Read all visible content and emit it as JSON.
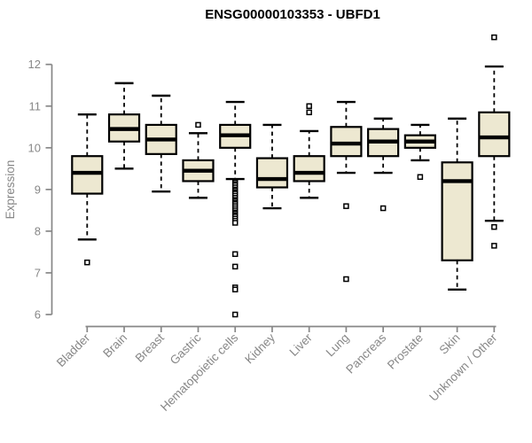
{
  "colors": {
    "box_fill": "#EDE8D1",
    "box_stroke": "#000000",
    "axis": "#878787",
    "text": "#878787",
    "title": "#000000"
  },
  "chart_data": {
    "type": "boxplot",
    "title": "ENSG00000103353 - UBFD1",
    "ylabel": "Expression",
    "xlabel": "",
    "ylim": [
      6,
      12.7
    ],
    "yticks": [
      6,
      7,
      8,
      9,
      10,
      11,
      12
    ],
    "grid": false,
    "legend": false,
    "categories": [
      "Bladder",
      "Brain",
      "Breast",
      "Gastric",
      "Hematopoietic cells",
      "Kidney",
      "Liver",
      "Lung",
      "Pancreas",
      "Prostate",
      "Skin",
      "Unknown / Other"
    ],
    "series": [
      {
        "name": "Bladder",
        "whisker_low": 7.8,
        "q1": 8.9,
        "median": 9.4,
        "q3": 9.8,
        "whisker_high": 10.8,
        "outliers": [
          7.25
        ]
      },
      {
        "name": "Brain",
        "whisker_low": 9.5,
        "q1": 10.15,
        "median": 10.45,
        "q3": 10.8,
        "whisker_high": 11.55,
        "outliers": []
      },
      {
        "name": "Breast",
        "whisker_low": 8.95,
        "q1": 9.85,
        "median": 10.2,
        "q3": 10.55,
        "whisker_high": 11.25,
        "outliers": []
      },
      {
        "name": "Gastric",
        "whisker_low": 8.8,
        "q1": 9.2,
        "median": 9.45,
        "q3": 9.7,
        "whisker_high": 10.35,
        "outliers": [
          10.55
        ]
      },
      {
        "name": "Hematopoietic cells",
        "whisker_low": 9.25,
        "q1": 10.0,
        "median": 10.3,
        "q3": 10.55,
        "whisker_high": 11.1,
        "outliers": [
          9.2,
          9.17,
          9.13,
          9.1,
          9.05,
          9.0,
          8.97,
          8.93,
          8.9,
          8.85,
          8.8,
          8.75,
          8.72,
          8.68,
          8.65,
          8.6,
          8.55,
          8.5,
          8.45,
          8.42,
          8.38,
          8.35,
          8.3,
          8.25,
          8.2,
          7.45,
          7.15,
          6.65,
          6.6,
          6.0
        ]
      },
      {
        "name": "Kidney",
        "whisker_low": 8.55,
        "q1": 9.05,
        "median": 9.25,
        "q3": 9.75,
        "whisker_high": 10.55,
        "outliers": []
      },
      {
        "name": "Liver",
        "whisker_low": 8.8,
        "q1": 9.2,
        "median": 9.4,
        "q3": 9.8,
        "whisker_high": 10.4,
        "outliers": [
          11.0,
          10.85
        ]
      },
      {
        "name": "Lung",
        "whisker_low": 9.4,
        "q1": 9.8,
        "median": 10.1,
        "q3": 10.5,
        "whisker_high": 11.1,
        "outliers": [
          8.6,
          6.85
        ]
      },
      {
        "name": "Pancreas",
        "whisker_low": 9.4,
        "q1": 9.8,
        "median": 10.15,
        "q3": 10.45,
        "whisker_high": 10.7,
        "outliers": [
          8.55
        ]
      },
      {
        "name": "Prostate",
        "whisker_low": 9.7,
        "q1": 10.0,
        "median": 10.15,
        "q3": 10.3,
        "whisker_high": 10.55,
        "outliers": [
          9.3
        ]
      },
      {
        "name": "Skin",
        "whisker_low": 6.6,
        "q1": 7.3,
        "median": 9.2,
        "q3": 9.65,
        "whisker_high": 10.7,
        "outliers": []
      },
      {
        "name": "Unknown / Other",
        "whisker_low": 8.25,
        "q1": 9.8,
        "median": 10.25,
        "q3": 10.85,
        "whisker_high": 11.95,
        "outliers": [
          12.65,
          8.1,
          7.65
        ]
      }
    ]
  }
}
